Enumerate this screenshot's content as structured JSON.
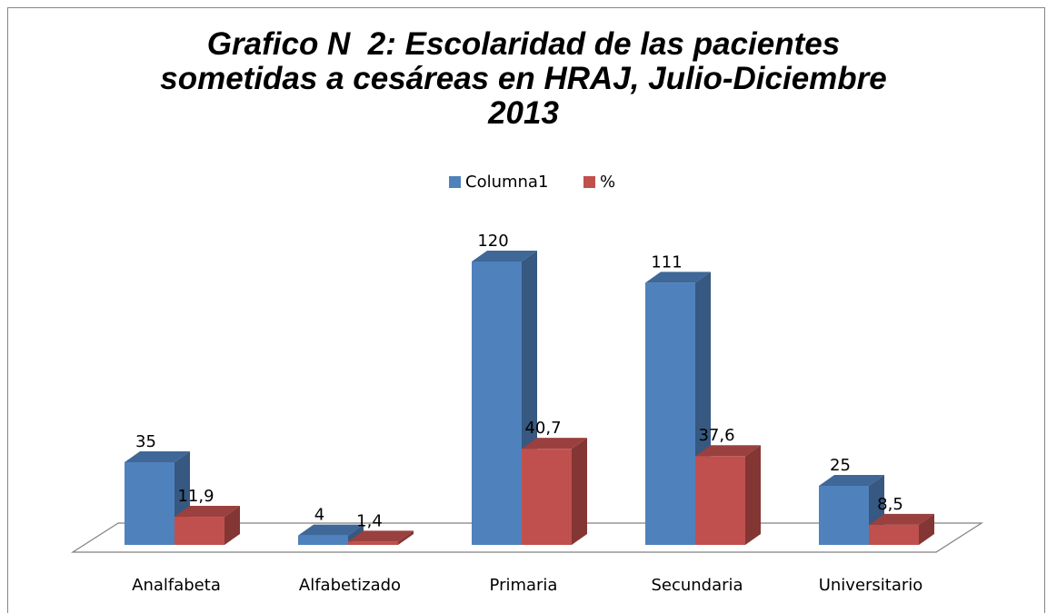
{
  "chart_data": {
    "type": "bar",
    "title": "Grafico N  2: Escolaridad de las pacientes sometidas a cesáreas en HRAJ, Julio-Diciembre 2013",
    "categories": [
      "Analfabeta",
      "Alfabetizado",
      "Primaria",
      "Secundaria",
      "Universitario"
    ],
    "series": [
      {
        "name": "Columna1",
        "color": "#4f81bd",
        "values": [
          35,
          4,
          120,
          111,
          25
        ]
      },
      {
        "name": "%",
        "color": "#c0504d",
        "values": [
          11.9,
          1.4,
          40.7,
          37.6,
          8.5
        ],
        "value_labels": [
          "11,9",
          "1,4",
          "40,7",
          "37,6",
          "8,5"
        ]
      }
    ],
    "legend": "top",
    "grid": false
  }
}
